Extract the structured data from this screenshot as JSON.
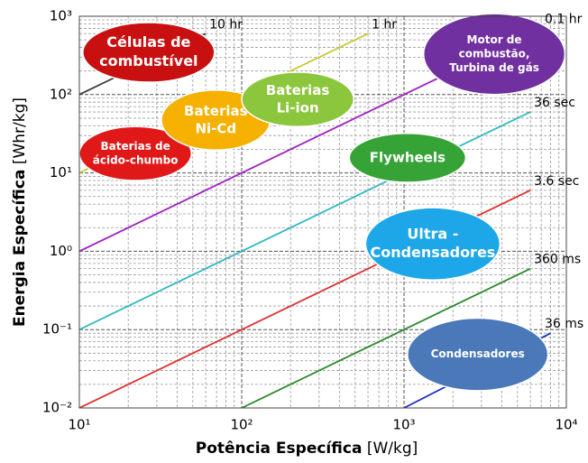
{
  "chart_data": {
    "type": "ragone",
    "xlabel": "Potência Específica",
    "xunit": "[W/kg]",
    "ylabel": "Energia Específica",
    "yunit": "[Whr/kg]",
    "xscale": "log",
    "yscale": "log",
    "grid": true,
    "xlim": [
      10,
      10000
    ],
    "ylim": [
      0.01,
      1000
    ],
    "xticks": [
      {
        "value": 10,
        "label": "10¹"
      },
      {
        "value": 100,
        "label": "10²"
      },
      {
        "value": 1000,
        "label": "10³"
      },
      {
        "value": 10000,
        "label": "10⁴"
      }
    ],
    "yticks": [
      {
        "value": 0.01,
        "label": "10⁻²"
      },
      {
        "value": 0.1,
        "label": "10⁻¹"
      },
      {
        "value": 1,
        "label": "10⁰"
      },
      {
        "value": 10,
        "label": "10¹"
      },
      {
        "value": 100,
        "label": "10²"
      },
      {
        "value": 1000,
        "label": "10³"
      }
    ],
    "xminorticks": [
      20,
      30,
      40,
      50,
      60,
      70,
      80,
      90,
      200,
      300,
      400,
      500,
      600,
      700,
      800,
      900,
      2000,
      3000,
      4000,
      5000,
      6000,
      7000,
      8000,
      9000
    ],
    "yminorticks": [
      0.02,
      0.03,
      0.04,
      0.05,
      0.06,
      0.07,
      0.08,
      0.09,
      0.2,
      0.3,
      0.4,
      0.5,
      0.6,
      0.7,
      0.8,
      0.9,
      2,
      3,
      4,
      5,
      6,
      7,
      8,
      9,
      20,
      30,
      40,
      50,
      60,
      70,
      80,
      90,
      200,
      300,
      400,
      500,
      600,
      700,
      800,
      900
    ],
    "series": [
      {
        "name": "10 hr",
        "color": "#404040",
        "x": [
          10,
          60
        ],
        "values": [
          100,
          600
        ]
      },
      {
        "name": "1 hr",
        "color": "#c8c832",
        "x": [
          10,
          600
        ],
        "values": [
          10,
          600
        ]
      },
      {
        "name": "0.1 hr",
        "color": "#a020c0",
        "x": [
          10,
          7000
        ],
        "values": [
          1,
          700
        ]
      },
      {
        "name": "36 sec",
        "color": "#30b8c0",
        "x": [
          10,
          6000
        ],
        "values": [
          0.1,
          60
        ]
      },
      {
        "name": "3.6 sec",
        "color": "#e03030",
        "x": [
          10,
          6000
        ],
        "values": [
          0.01,
          6
        ]
      },
      {
        "name": "360 ms",
        "color": "#2a8a2a",
        "x": [
          100,
          6000
        ],
        "values": [
          0.01,
          0.6
        ]
      },
      {
        "name": "36 ms",
        "color": "#2030c0",
        "x": [
          1000,
          8000
        ],
        "values": [
          0.01,
          0.09
        ]
      }
    ],
    "regions": [
      {
        "label": [
          "Células de",
          "combustível"
        ],
        "color": "#c81010",
        "x": [
          10.5,
          68
        ],
        "y": [
          144,
          830
        ]
      },
      {
        "label": [
          "Baterias de",
          "ácido-chumbo"
        ],
        "color": "#e01818",
        "x": [
          10,
          49
        ],
        "y": [
          8,
          39
        ]
      },
      {
        "label": [
          "Baterias",
          "Ni-Cd"
        ],
        "color": "#f5b000",
        "x": [
          32,
          150
        ],
        "y": [
          19.6,
          114
        ]
      },
      {
        "label": [
          "Baterias",
          "Li-ion"
        ],
        "color": "#8cc63c",
        "x": [
          100,
          490
        ],
        "y": [
          39,
          193
        ]
      },
      {
        "label": [
          "Motor de",
          "combustão,",
          "Turbina de gás"
        ],
        "color": "#7030a0",
        "x": [
          1320,
          9800
        ],
        "y": [
          100,
          1080
        ]
      },
      {
        "label": [
          "Flywheels"
        ],
        "color": "#36a336",
        "x": [
          460,
          2400
        ],
        "y": [
          7.6,
          32
        ]
      },
      {
        "label": [
          "Ultra -",
          "Condensadores"
        ],
        "color": "#1ea7e8",
        "x": [
          580,
          3900
        ],
        "y": [
          0.43,
          3.6
        ]
      },
      {
        "label": [
          "Condensadores"
        ],
        "color": "#4a78b8",
        "x": [
          1050,
          7700
        ],
        "y": [
          0.0166,
          0.14
        ]
      }
    ]
  }
}
